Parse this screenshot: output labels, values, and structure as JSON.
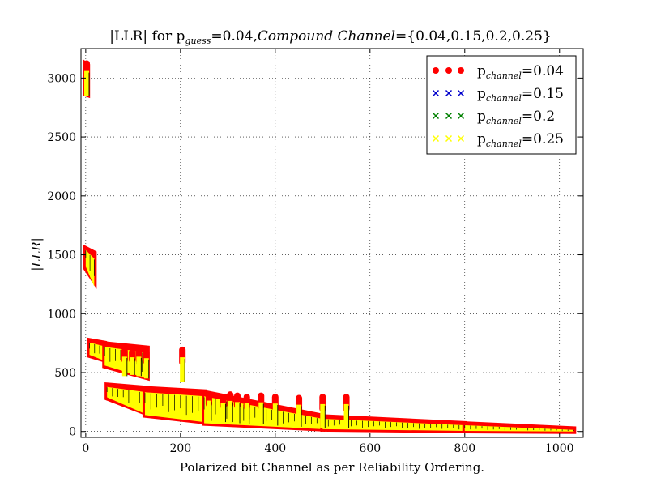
{
  "chart_data": {
    "type": "scatter",
    "title": {
      "part1": "|LLR| for p",
      "sub": "guess",
      "part2": "=0.04,",
      "italic": "Compound Channel",
      "part3": "={0.04,0.15,0.2,0.25}"
    },
    "xlabel": "Polarized bit Channel as per Reliability Ordering.",
    "ylabel": "|LLR|",
    "xlim": [
      -10,
      1050
    ],
    "ylim": [
      -50,
      3250
    ],
    "xticks": [
      0,
      200,
      400,
      600,
      800,
      1000
    ],
    "yticks": [
      0,
      500,
      1000,
      1500,
      2000,
      2500,
      3000
    ],
    "grid": true,
    "legend_position": "top-right",
    "series": [
      {
        "name": "p",
        "sub": "channel",
        "value": "=0.04",
        "marker": "circle",
        "color": "#ff0000"
      },
      {
        "name": "p",
        "sub": "channel",
        "value": "=0.15",
        "marker": "x",
        "color": "#0000cc"
      },
      {
        "name": "p",
        "sub": "channel",
        "value": "=0.2",
        "marker": "x",
        "color": "#008000"
      },
      {
        "name": "p",
        "sub": "channel",
        "value": "=0.25",
        "marker": "x",
        "color": "#ffff00"
      }
    ],
    "clusters": [
      {
        "x": [
          0,
          4
        ],
        "top": [
          3130,
          3090
        ],
        "bottom": [
          2870,
          2850
        ]
      },
      {
        "x": [
          0,
          18
        ],
        "top": [
          1560,
          1500
        ],
        "bottom": [
          1400,
          1230
        ]
      },
      {
        "x": [
          8,
          40
        ],
        "top": [
          770,
          740
        ],
        "bottom": [
          650,
          600
        ]
      },
      {
        "x": [
          40,
          130
        ],
        "top": [
          740,
          700
        ],
        "bottom": [
          560,
          450
        ]
      },
      {
        "x": [
          45,
          125
        ],
        "top": [
          390,
          360
        ],
        "bottom": [
          290,
          150
        ]
      },
      {
        "x": [
          125,
          250
        ],
        "top": [
          360,
          330
        ],
        "bottom": [
          140,
          80
        ]
      },
      {
        "x": [
          250,
          500
        ],
        "top": [
          330,
          120
        ],
        "bottom": [
          70,
          20
        ]
      },
      {
        "x": [
          500,
          800
        ],
        "top": [
          120,
          60
        ],
        "bottom": [
          20,
          5
        ]
      },
      {
        "x": [
          800,
          1030
        ],
        "top": [
          60,
          15
        ],
        "bottom": [
          5,
          0
        ]
      }
    ],
    "spikes": [
      {
        "x": 2,
        "top": 3130,
        "bottom": 2850
      },
      {
        "x": 82,
        "top": 690,
        "bottom": 470
      },
      {
        "x": 98,
        "top": 680,
        "bottom": 480
      },
      {
        "x": 112,
        "top": 690,
        "bottom": 470
      },
      {
        "x": 128,
        "top": 680,
        "bottom": 450
      },
      {
        "x": 204,
        "top": 700,
        "bottom": 420
      },
      {
        "x": 260,
        "top": 320,
        "bottom": 90
      },
      {
        "x": 290,
        "top": 300,
        "bottom": 80
      },
      {
        "x": 305,
        "top": 320,
        "bottom": 80
      },
      {
        "x": 320,
        "top": 310,
        "bottom": 70
      },
      {
        "x": 340,
        "top": 300,
        "bottom": 60
      },
      {
        "x": 370,
        "top": 310,
        "bottom": 60
      },
      {
        "x": 400,
        "top": 300,
        "bottom": 50
      },
      {
        "x": 450,
        "top": 290,
        "bottom": 40
      },
      {
        "x": 500,
        "top": 300,
        "bottom": 30
      },
      {
        "x": 550,
        "top": 300,
        "bottom": 30
      }
    ]
  }
}
